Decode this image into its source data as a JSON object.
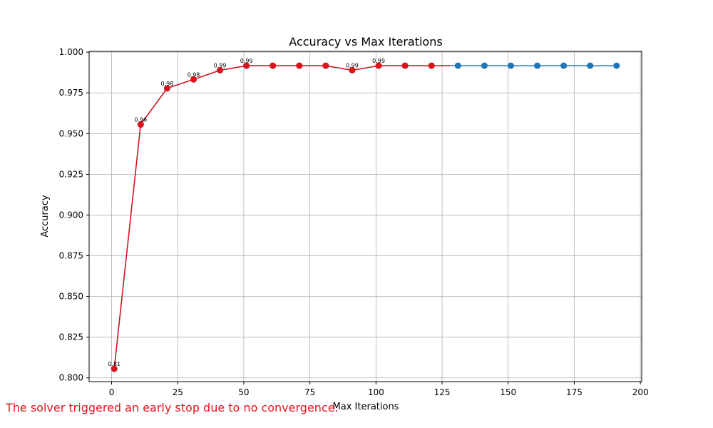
{
  "chart_data": {
    "type": "line",
    "title": "Accuracy vs Max Iterations",
    "xlabel": "Max Iterations",
    "ylabel": "Accuracy",
    "xlim": [
      -8.5,
      200.5
    ],
    "ylim": [
      0.7977,
      1.0005
    ],
    "x_ticks": [
      0,
      25,
      50,
      75,
      100,
      125,
      150,
      175,
      200
    ],
    "y_ticks": [
      0.8,
      0.825,
      0.85,
      0.875,
      0.9,
      0.925,
      0.95,
      0.975,
      1.0
    ],
    "y_tick_labels": [
      "0.800",
      "0.825",
      "0.850",
      "0.875",
      "0.900",
      "0.925",
      "0.950",
      "0.975",
      "1.000"
    ],
    "grid": true,
    "series": [
      {
        "color": "#1f77b4",
        "marker": "circle",
        "x": [
          1,
          11,
          21,
          31,
          41,
          51,
          61,
          71,
          81,
          91,
          101,
          111,
          121,
          131,
          141,
          151,
          161,
          171,
          181,
          191
        ],
        "y": [
          0.8056,
          0.9556,
          0.9778,
          0.9833,
          0.9889,
          0.9917,
          0.9917,
          0.9917,
          0.9917,
          0.9889,
          0.9917,
          0.9917,
          0.9917,
          0.9917,
          0.9917,
          0.9917,
          0.9917,
          0.9917,
          0.9917,
          0.9917
        ]
      },
      {
        "color": "#ff0000",
        "marker": "circle",
        "x": [
          1,
          11,
          21,
          31,
          41,
          51,
          61,
          71,
          81,
          91,
          101,
          111,
          121,
          128
        ],
        "y": [
          0.8056,
          0.9556,
          0.9778,
          0.9833,
          0.9889,
          0.9917,
          0.9917,
          0.9917,
          0.9917,
          0.9889,
          0.9917,
          0.9917,
          0.9917,
          0.9917
        ]
      }
    ],
    "data_labels": [
      {
        "x": 1,
        "y": 0.8056,
        "text": "0.81"
      },
      {
        "x": 11,
        "y": 0.9556,
        "text": "0.96"
      },
      {
        "x": 21,
        "y": 0.9778,
        "text": "0.98"
      },
      {
        "x": 31,
        "y": 0.9833,
        "text": "0.98"
      },
      {
        "x": 41,
        "y": 0.9889,
        "text": "0.99"
      },
      {
        "x": 51,
        "y": 0.9917,
        "text": "0.99"
      },
      {
        "x": 91,
        "y": 0.9889,
        "text": "0.99"
      },
      {
        "x": 101,
        "y": 0.9917,
        "text": "0.99"
      }
    ]
  },
  "footnote": {
    "text": "The solver triggered an early stop due to no convergence.",
    "color": "#e8141e"
  }
}
